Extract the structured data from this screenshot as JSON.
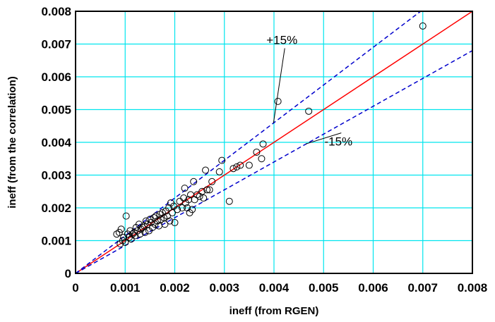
{
  "chart_data": {
    "type": "scatter",
    "xlabel": "ineff  (from RGEN)",
    "ylabel": "ineff  (from the correlation)",
    "xlim": [
      0,
      0.008
    ],
    "ylim": [
      0,
      0.008
    ],
    "x_ticks": [
      "0",
      "0.001",
      "0.002",
      "0.003",
      "0.004",
      "0.005",
      "0.006",
      "0.007",
      "0.008"
    ],
    "y_ticks": [
      "0",
      "0.001",
      "0.002",
      "0.003",
      "0.004",
      "0.005",
      "0.006",
      "0.007",
      "0.008"
    ],
    "grid": true,
    "grid_color": "#00e5ee",
    "lines": [
      {
        "label": "",
        "slope": 1.0,
        "color": "#ff0000",
        "style": "solid"
      },
      {
        "label": "+15%",
        "slope": 1.15,
        "color": "#0000cc",
        "style": "dashed"
      },
      {
        "label": "-15%",
        "slope": 0.85,
        "color": "#0000cc",
        "style": "dashed"
      }
    ],
    "annotations": [
      {
        "text": "+15%",
        "x": 0.00416,
        "y": 0.007,
        "arrow_to": [
          0.00399,
          0.00459
        ]
      },
      {
        "text": "-15%",
        "x": 0.0053,
        "y": 0.0039,
        "arrow_to": [
          0.00464,
          0.00395
        ]
      }
    ],
    "points": [
      [
        0.00083,
        0.0012
      ],
      [
        0.00088,
        0.00125
      ],
      [
        0.00092,
        0.00135
      ],
      [
        0.0009,
        0.0009
      ],
      [
        0.00095,
        0.001
      ],
      [
        0.00097,
        0.0011
      ],
      [
        0.001,
        0.00095
      ],
      [
        0.00102,
        0.00175
      ],
      [
        0.00105,
        0.0012
      ],
      [
        0.00108,
        0.0011
      ],
      [
        0.0011,
        0.0013
      ],
      [
        0.00112,
        0.00105
      ],
      [
        0.00115,
        0.0012
      ],
      [
        0.00118,
        0.00125
      ],
      [
        0.0012,
        0.00115
      ],
      [
        0.00122,
        0.0014
      ],
      [
        0.00125,
        0.0013
      ],
      [
        0.00128,
        0.0015
      ],
      [
        0.0013,
        0.0012
      ],
      [
        0.00132,
        0.00135
      ],
      [
        0.00135,
        0.0014
      ],
      [
        0.00138,
        0.00145
      ],
      [
        0.0014,
        0.00125
      ],
      [
        0.00142,
        0.0016
      ],
      [
        0.00145,
        0.0015
      ],
      [
        0.00148,
        0.0013
      ],
      [
        0.0015,
        0.00165
      ],
      [
        0.00152,
        0.00155
      ],
      [
        0.00155,
        0.0014
      ],
      [
        0.00158,
        0.0017
      ],
      [
        0.0016,
        0.0015
      ],
      [
        0.00162,
        0.00175
      ],
      [
        0.00165,
        0.0016
      ],
      [
        0.00168,
        0.00145
      ],
      [
        0.0017,
        0.0018
      ],
      [
        0.00172,
        0.00165
      ],
      [
        0.00175,
        0.00185
      ],
      [
        0.00178,
        0.0017
      ],
      [
        0.0018,
        0.0015
      ],
      [
        0.00182,
        0.0019
      ],
      [
        0.00185,
        0.00175
      ],
      [
        0.00188,
        0.002
      ],
      [
        0.0019,
        0.0016
      ],
      [
        0.00192,
        0.00215
      ],
      [
        0.00195,
        0.00185
      ],
      [
        0.00198,
        0.00205
      ],
      [
        0.002,
        0.00155
      ],
      [
        0.00205,
        0.00195
      ],
      [
        0.0021,
        0.0022
      ],
      [
        0.00215,
        0.002
      ],
      [
        0.00218,
        0.0023
      ],
      [
        0.0022,
        0.0026
      ],
      [
        0.00222,
        0.00215
      ],
      [
        0.00225,
        0.002
      ],
      [
        0.00228,
        0.00225
      ],
      [
        0.0023,
        0.00185
      ],
      [
        0.00232,
        0.0024
      ],
      [
        0.00235,
        0.00195
      ],
      [
        0.00238,
        0.0028
      ],
      [
        0.0024,
        0.00225
      ],
      [
        0.00245,
        0.0024
      ],
      [
        0.0025,
        0.00235
      ],
      [
        0.00255,
        0.0025
      ],
      [
        0.00258,
        0.0023
      ],
      [
        0.00262,
        0.00315
      ],
      [
        0.00265,
        0.00255
      ],
      [
        0.0027,
        0.00255
      ],
      [
        0.00275,
        0.0028
      ],
      [
        0.0029,
        0.0031
      ],
      [
        0.00295,
        0.00345
      ],
      [
        0.0031,
        0.0022
      ],
      [
        0.00318,
        0.0032
      ],
      [
        0.00325,
        0.00325
      ],
      [
        0.00332,
        0.0033
      ],
      [
        0.0035,
        0.0033
      ],
      [
        0.00365,
        0.0037
      ],
      [
        0.00375,
        0.0035
      ],
      [
        0.00378,
        0.00395
      ],
      [
        0.00408,
        0.00525
      ],
      [
        0.0047,
        0.00495
      ],
      [
        0.007,
        0.00755
      ]
    ]
  }
}
